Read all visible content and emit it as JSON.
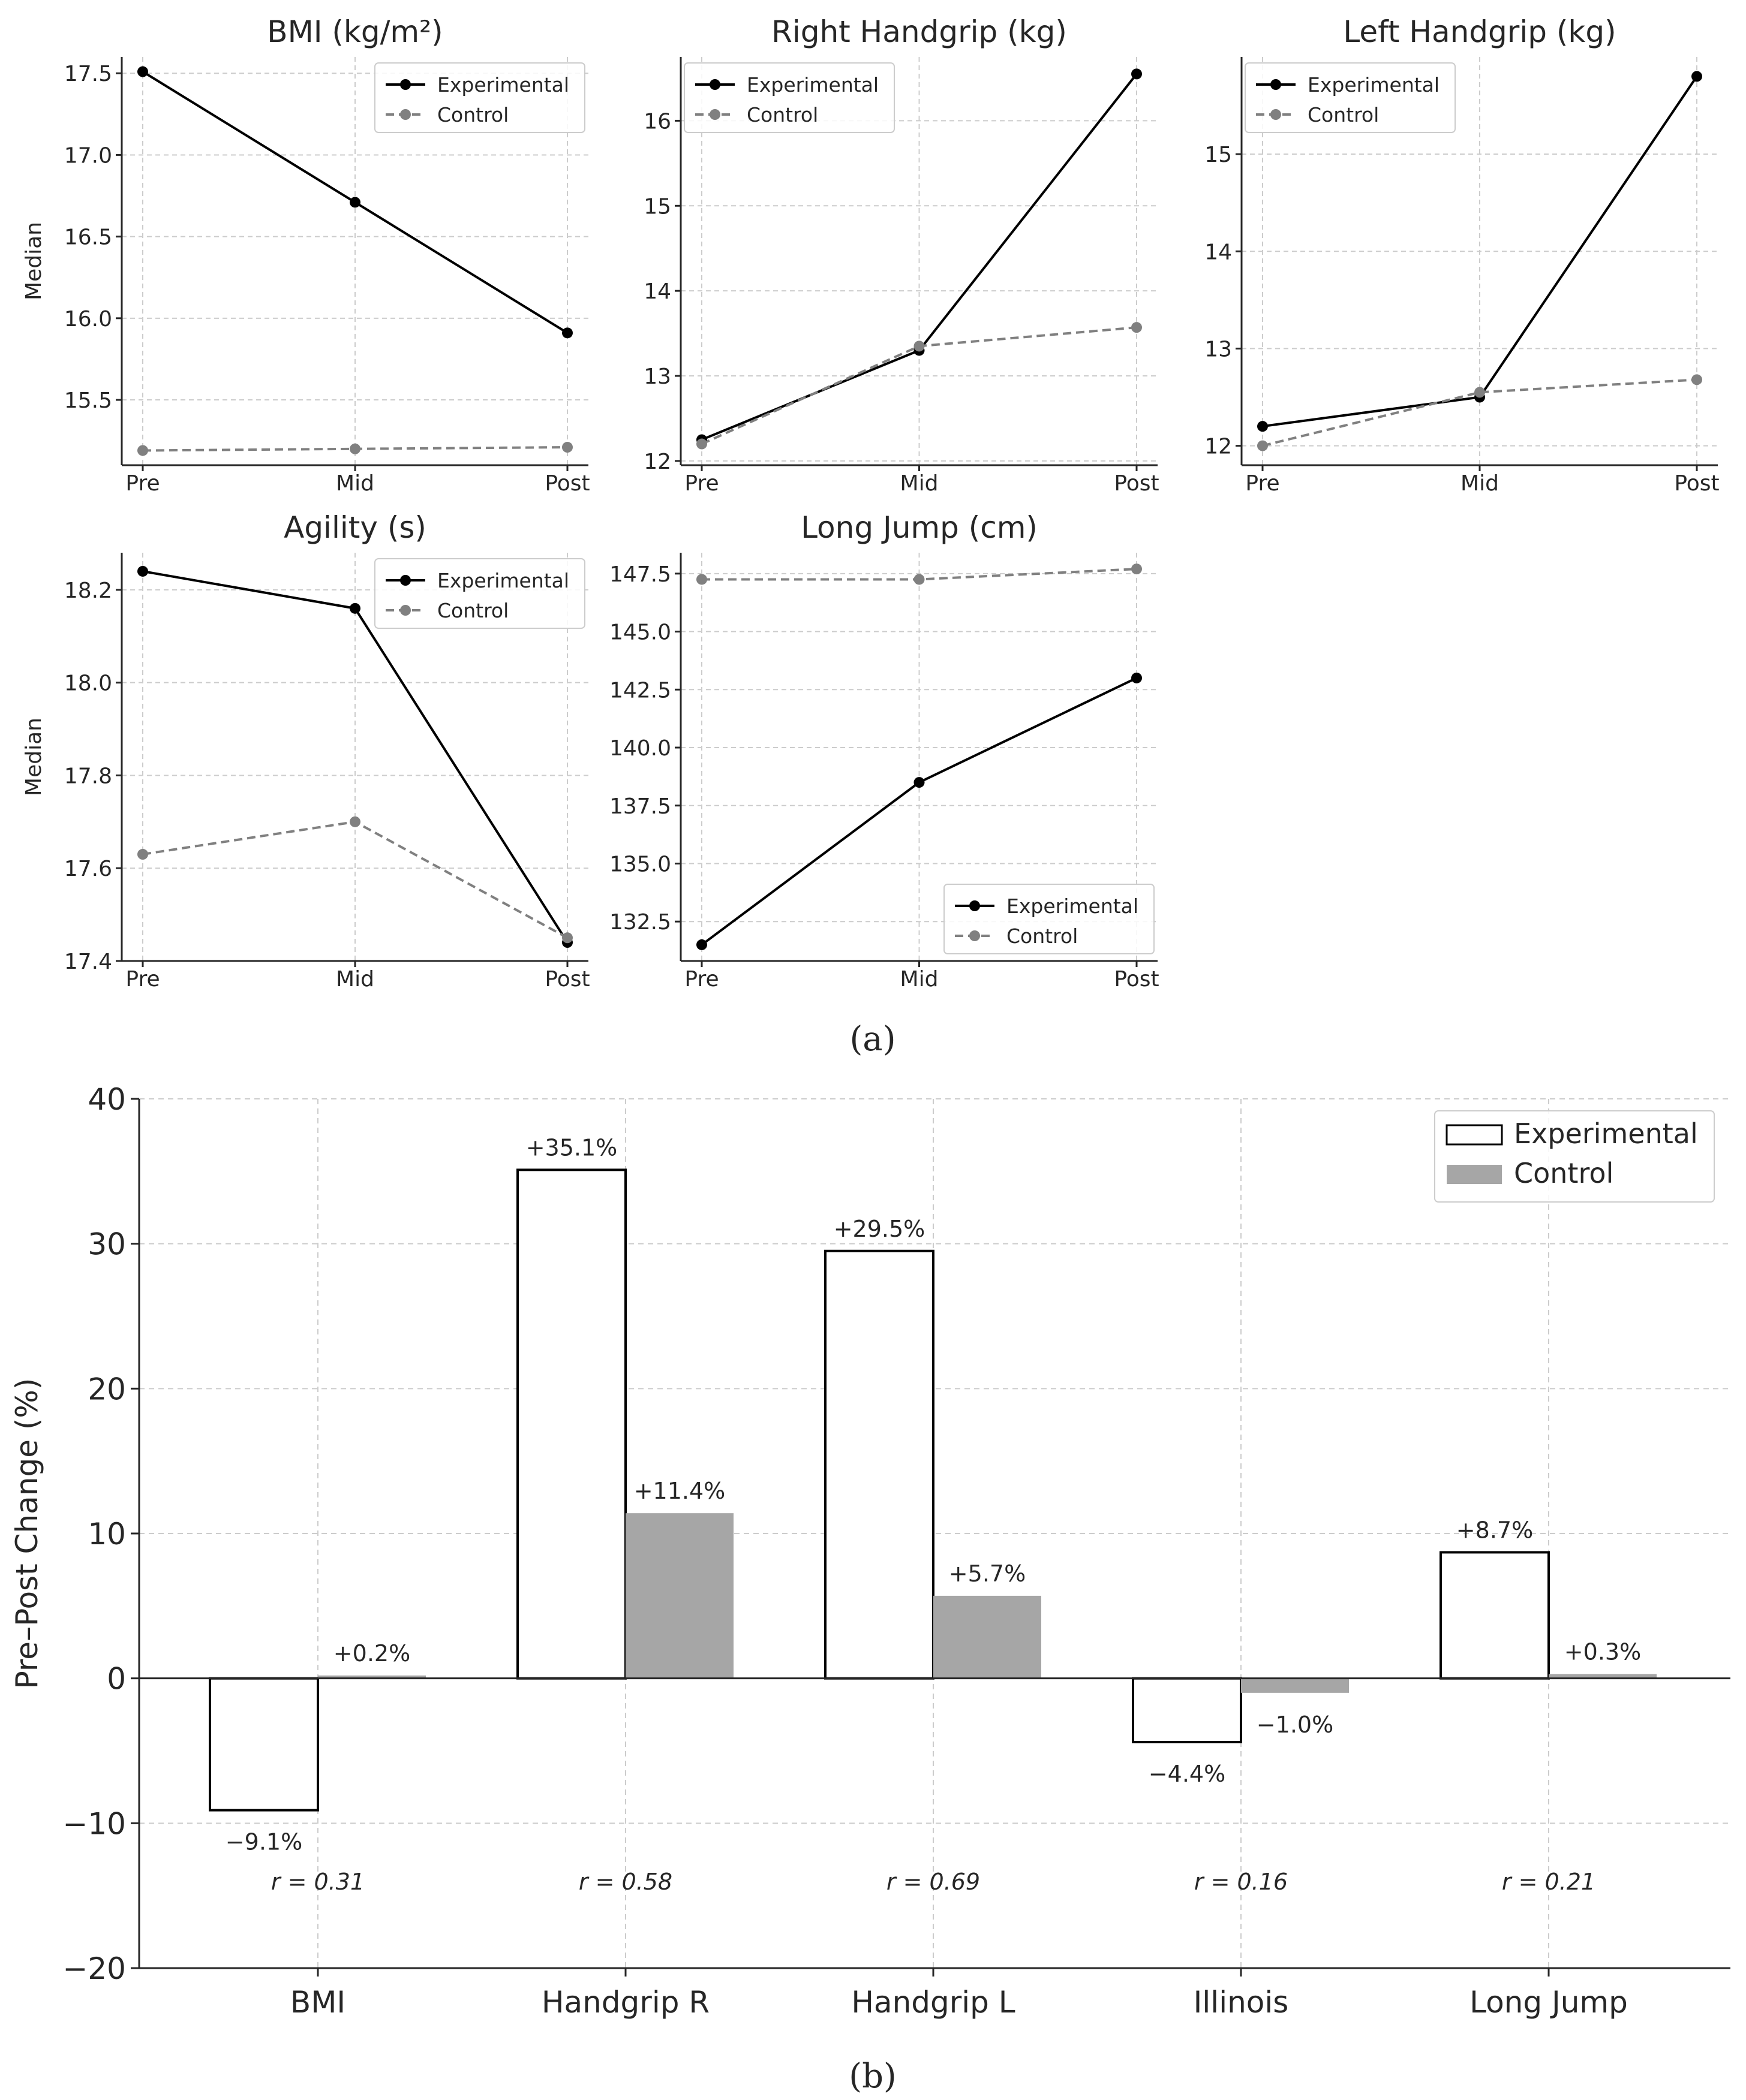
{
  "figure": {
    "panel_a_label": "(a)",
    "panel_b_label": "(b)"
  },
  "colors": {
    "experimental": "#000000",
    "control": "#808080",
    "control_bar": "#a6a6a6",
    "grid": "#cccccc",
    "axis": "#262626"
  },
  "chart_data": [
    {
      "id": "bmi",
      "type": "line",
      "title": "BMI (kg/m²)",
      "ylabel": "Median",
      "categories": [
        "Pre",
        "Mid",
        "Post"
      ],
      "ylim": [
        15.1,
        17.6
      ],
      "yticks": [
        15.5,
        16.0,
        16.5,
        17.0,
        17.5
      ],
      "ytick_labels": [
        "15.5",
        "16.0",
        "16.5",
        "17.0",
        "17.5"
      ],
      "grid": true,
      "legend_position": "top-right",
      "series": [
        {
          "name": "Experimental",
          "values": [
            17.51,
            16.71,
            15.91
          ]
        },
        {
          "name": "Control",
          "values": [
            15.19,
            15.2,
            15.21
          ]
        }
      ]
    },
    {
      "id": "right-handgrip",
      "type": "line",
      "title": "Right Handgrip (kg)",
      "ylabel": "",
      "categories": [
        "Pre",
        "Mid",
        "Post"
      ],
      "ylim": [
        11.95,
        16.75
      ],
      "yticks": [
        12,
        13,
        14,
        15,
        16
      ],
      "ytick_labels": [
        "12",
        "13",
        "14",
        "15",
        "16"
      ],
      "grid": true,
      "legend_position": "top-left",
      "series": [
        {
          "name": "Experimental",
          "values": [
            12.25,
            13.3,
            16.55
          ]
        },
        {
          "name": "Control",
          "values": [
            12.2,
            13.35,
            13.57
          ]
        }
      ]
    },
    {
      "id": "left-handgrip",
      "type": "line",
      "title": "Left Handgrip (kg)",
      "ylabel": "",
      "categories": [
        "Pre",
        "Mid",
        "Post"
      ],
      "ylim": [
        11.8,
        16.0
      ],
      "yticks": [
        12,
        13,
        14,
        15
      ],
      "ytick_labels": [
        "12",
        "13",
        "14",
        "15"
      ],
      "grid": true,
      "legend_position": "top-left",
      "series": [
        {
          "name": "Experimental",
          "values": [
            12.2,
            12.5,
            15.8
          ]
        },
        {
          "name": "Control",
          "values": [
            12.0,
            12.55,
            12.68
          ]
        }
      ]
    },
    {
      "id": "agility",
      "type": "line",
      "title": "Agility (s)",
      "ylabel": "Median",
      "categories": [
        "Pre",
        "Mid",
        "Post"
      ],
      "ylim": [
        17.4,
        18.28
      ],
      "yticks": [
        17.4,
        17.6,
        17.8,
        18.0,
        18.2
      ],
      "ytick_labels": [
        "17.4",
        "17.6",
        "17.8",
        "18.0",
        "18.2"
      ],
      "grid": true,
      "legend_position": "top-right",
      "series": [
        {
          "name": "Experimental",
          "values": [
            18.24,
            18.16,
            17.44
          ]
        },
        {
          "name": "Control",
          "values": [
            17.63,
            17.7,
            17.45
          ]
        }
      ]
    },
    {
      "id": "long-jump",
      "type": "line",
      "title": "Long Jump (cm)",
      "ylabel": "",
      "categories": [
        "Pre",
        "Mid",
        "Post"
      ],
      "ylim": [
        130.8,
        148.4
      ],
      "yticks": [
        132.5,
        135.0,
        137.5,
        140.0,
        142.5,
        145.0,
        147.5
      ],
      "ytick_labels": [
        "132.5",
        "135.0",
        "137.5",
        "140.0",
        "142.5",
        "145.0",
        "147.5"
      ],
      "grid": true,
      "legend_position": "bottom-right",
      "series": [
        {
          "name": "Experimental",
          "values": [
            131.5,
            138.5,
            143.0
          ]
        },
        {
          "name": "Control",
          "values": [
            147.25,
            147.25,
            147.7
          ]
        }
      ]
    },
    {
      "id": "pre-post-change",
      "type": "bar",
      "title": "",
      "xlabel": "",
      "ylabel": "Pre–Post Change (%)",
      "categories": [
        "BMI",
        "Handgrip R",
        "Handgrip L",
        "Illinois",
        "Long Jump"
      ],
      "ylim": [
        -20,
        40
      ],
      "yticks": [
        -20,
        -10,
        0,
        10,
        20,
        30,
        40
      ],
      "ytick_labels": [
        "−20",
        "−10",
        "0",
        "10",
        "20",
        "30",
        "40"
      ],
      "grid": true,
      "legend_position": "top-right",
      "series": [
        {
          "name": "Experimental",
          "values": [
            -9.1,
            35.1,
            29.5,
            -4.4,
            8.7
          ],
          "labels": [
            "−9.1%",
            "+35.1%",
            "+29.5%",
            "−4.4%",
            "+8.7%"
          ]
        },
        {
          "name": "Control",
          "values": [
            0.2,
            11.4,
            5.7,
            -1.0,
            0.3
          ],
          "labels": [
            "+0.2%",
            "+11.4%",
            "+5.7%",
            "−1.0%",
            "+0.3%"
          ]
        }
      ],
      "effect_sizes": [
        "r = 0.31",
        "r = 0.58",
        "r = 0.69",
        "r = 0.16",
        "r = 0.21"
      ],
      "effect_size_y": -14
    }
  ]
}
